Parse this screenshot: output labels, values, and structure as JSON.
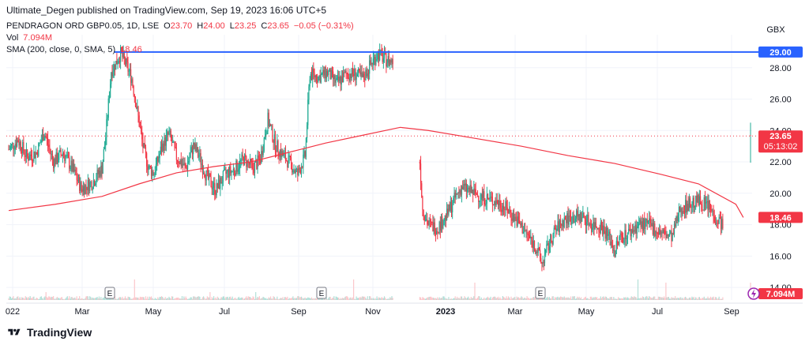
{
  "header": {
    "published_by": "Ultimate_Degen published on TradingView.com, Sep 19, 2023 16:06 UTC+5"
  },
  "legend": {
    "symbol": "PENDRAGON ORD GBP0.05, 1D, LSE",
    "o_label": "O",
    "o_value": "23.70",
    "h_label": "H",
    "h_value": "24.00",
    "l_label": "L",
    "l_value": "23.25",
    "c_label": "C",
    "c_value": "23.65",
    "change": "−0.05 (−0.31%)",
    "vol_label": "Vol",
    "vol_value": "7.094M",
    "sma_label": "SMA (200, close, 0, SMA, 5)",
    "sma_value": "18.46"
  },
  "currency": "GBX",
  "footer": {
    "brand": "TradingView"
  },
  "colors": {
    "up": "#22ab94",
    "down": "#f23645",
    "sma": "#f23645",
    "hline": "#2962ff",
    "grid": "#f0f3fa",
    "axis_text": "#131722",
    "vol_up": "#b2dfd8",
    "vol_down": "#fbc7cb"
  },
  "chart_data": {
    "type": "candlestick",
    "title": "PENDRAGON ORD GBP0.05, 1D, LSE",
    "y_ticks": [
      "14.00",
      "16.00",
      "18.00",
      "20.00",
      "22.00",
      "24.00",
      "26.00",
      "28.00"
    ],
    "ylim": [
      13.2,
      30.1
    ],
    "x_ticks": [
      "022",
      "Mar",
      "May",
      "Jul",
      "Sep",
      "Nov",
      "2023",
      "Mar",
      "May",
      "Jul",
      "Sep"
    ],
    "price_labels": [
      {
        "text": "29.00",
        "value": 29.0,
        "color": "#2962ff"
      },
      {
        "text": "23.65",
        "value": 23.65,
        "color": "#f23645",
        "sub": "05:13:02"
      },
      {
        "text": "18.46",
        "value": 18.46,
        "color": "#f23645"
      }
    ],
    "volume_label": "7.094M",
    "horizontal_line": 29.0,
    "earnings_markers": [
      "E",
      "E",
      "E"
    ],
    "anchors": [
      [
        0,
        22.8
      ],
      [
        10,
        23.4
      ],
      [
        20,
        22.3
      ],
      [
        30,
        22.6
      ],
      [
        38,
        23.9
      ],
      [
        48,
        22.0
      ],
      [
        58,
        22.6
      ],
      [
        68,
        21.6
      ],
      [
        78,
        20.3
      ],
      [
        90,
        20.7
      ],
      [
        100,
        21.6
      ],
      [
        104,
        23.6
      ],
      [
        110,
        27.8
      ],
      [
        116,
        28.4
      ],
      [
        120,
        28.9
      ],
      [
        126,
        28.2
      ],
      [
        132,
        27.3
      ],
      [
        138,
        25.2
      ],
      [
        144,
        23.0
      ],
      [
        150,
        21.6
      ],
      [
        156,
        21.3
      ],
      [
        164,
        22.9
      ],
      [
        172,
        23.8
      ],
      [
        180,
        22.3
      ],
      [
        190,
        21.6
      ],
      [
        198,
        23.0
      ],
      [
        204,
        22.4
      ],
      [
        212,
        21.1
      ],
      [
        222,
        20.2
      ],
      [
        232,
        21.2
      ],
      [
        242,
        21.5
      ],
      [
        252,
        22.2
      ],
      [
        262,
        21.6
      ],
      [
        270,
        22.2
      ],
      [
        278,
        24.7
      ],
      [
        286,
        23.1
      ],
      [
        294,
        22.4
      ],
      [
        302,
        21.9
      ],
      [
        310,
        21.2
      ],
      [
        318,
        22.4
      ],
      [
        323,
        27.6
      ],
      [
        332,
        27.4
      ],
      [
        342,
        27.7
      ],
      [
        352,
        27.0
      ],
      [
        362,
        27.6
      ],
      [
        372,
        27.6
      ],
      [
        380,
        27.3
      ],
      [
        388,
        28.2
      ],
      [
        396,
        28.9
      ],
      [
        404,
        28.5
      ],
      [
        412,
        28.4
      ],
      [
        441,
        22.0
      ],
      [
        444,
        19.0
      ],
      [
        450,
        18.0
      ],
      [
        460,
        17.8
      ],
      [
        470,
        18.6
      ],
      [
        478,
        19.6
      ],
      [
        486,
        20.4
      ],
      [
        496,
        20.1
      ],
      [
        506,
        19.8
      ],
      [
        516,
        19.6
      ],
      [
        526,
        19.4
      ],
      [
        536,
        18.9
      ],
      [
        546,
        18.2
      ],
      [
        556,
        17.4
      ],
      [
        566,
        16.5
      ],
      [
        572,
        15.5
      ],
      [
        578,
        16.5
      ],
      [
        586,
        17.6
      ],
      [
        596,
        18.3
      ],
      [
        606,
        18.5
      ],
      [
        616,
        18.5
      ],
      [
        626,
        18.0
      ],
      [
        636,
        17.9
      ],
      [
        644,
        17.2
      ],
      [
        650,
        16.3
      ],
      [
        656,
        17.2
      ],
      [
        666,
        17.5
      ],
      [
        676,
        18.0
      ],
      [
        686,
        18.0
      ],
      [
        696,
        17.6
      ],
      [
        706,
        17.3
      ],
      [
        712,
        17.2
      ],
      [
        720,
        19.0
      ],
      [
        730,
        19.3
      ],
      [
        740,
        19.5
      ],
      [
        750,
        19.2
      ],
      [
        760,
        18.3
      ],
      [
        766,
        18.1
      ]
    ],
    "last_candle": {
      "o": 23.7,
      "h": 24.0,
      "l": 23.25,
      "c": 23.65
    },
    "sma_points": [
      [
        0,
        18.9
      ],
      [
        50,
        19.3
      ],
      [
        100,
        19.8
      ],
      [
        140,
        20.6
      ],
      [
        180,
        21.3
      ],
      [
        220,
        21.7
      ],
      [
        260,
        22.0
      ],
      [
        300,
        22.6
      ],
      [
        340,
        23.2
      ],
      [
        380,
        23.7
      ],
      [
        420,
        24.2
      ],
      [
        450,
        24.0
      ],
      [
        500,
        23.5
      ],
      [
        550,
        23.0
      ],
      [
        600,
        22.4
      ],
      [
        650,
        21.9
      ],
      [
        700,
        21.2
      ],
      [
        740,
        20.6
      ],
      [
        780,
        19.3
      ],
      [
        788,
        18.46
      ]
    ]
  }
}
